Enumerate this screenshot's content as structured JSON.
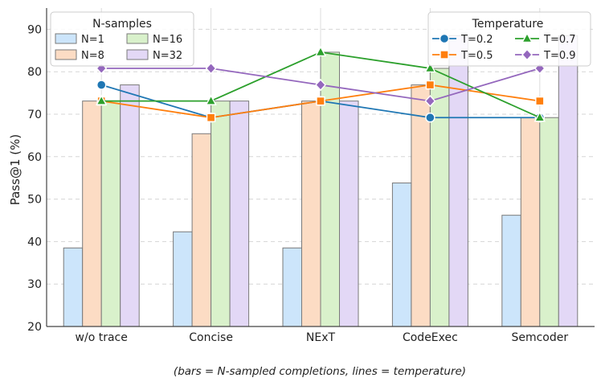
{
  "chart_data": {
    "type": "bar",
    "title": "",
    "xlabel": "",
    "ylabel": "Pass@1 (%)",
    "ylim": [
      20,
      95
    ],
    "yticks": [
      20,
      30,
      40,
      50,
      60,
      70,
      80,
      90
    ],
    "grid": true,
    "categories": [
      "w/o trace",
      "Concise",
      "NExT",
      "CodeExec",
      "Semcoder"
    ],
    "caption": "(bars = N-sampled completions, lines = temperature)",
    "bar_legend": {
      "title": "N-samples",
      "position": "top-left"
    },
    "line_legend": {
      "title": "Temperature",
      "position": "top-right"
    },
    "bar_series": [
      {
        "name": "N=1",
        "color": "#cce5fb",
        "values": [
          38.5,
          42.3,
          38.5,
          53.8,
          46.2
        ]
      },
      {
        "name": "N=8",
        "color": "#fcdcc4",
        "values": [
          73.1,
          65.4,
          73.1,
          76.9,
          69.2
        ]
      },
      {
        "name": "N=16",
        "color": "#d9f1cb",
        "values": [
          73.1,
          73.1,
          84.6,
          80.8,
          69.2
        ]
      },
      {
        "name": "N=32",
        "color": "#e3d8f6",
        "values": [
          76.9,
          73.1,
          73.1,
          88.5,
          88.5
        ]
      }
    ],
    "line_series": [
      {
        "name": "T=0.2",
        "color": "#1f77b4",
        "marker": "circle",
        "values": [
          76.9,
          69.2,
          73.1,
          69.2,
          69.2
        ]
      },
      {
        "name": "T=0.5",
        "color": "#ff7f0e",
        "marker": "square",
        "values": [
          73.1,
          69.2,
          73.1,
          76.9,
          73.1
        ]
      },
      {
        "name": "T=0.7",
        "color": "#2ca02c",
        "marker": "triangle",
        "values": [
          73.1,
          73.1,
          84.6,
          80.8,
          69.2
        ]
      },
      {
        "name": "T=0.9",
        "color": "#9467bd",
        "marker": "diamond",
        "values": [
          80.8,
          80.8,
          76.9,
          73.1,
          80.8
        ]
      }
    ]
  }
}
